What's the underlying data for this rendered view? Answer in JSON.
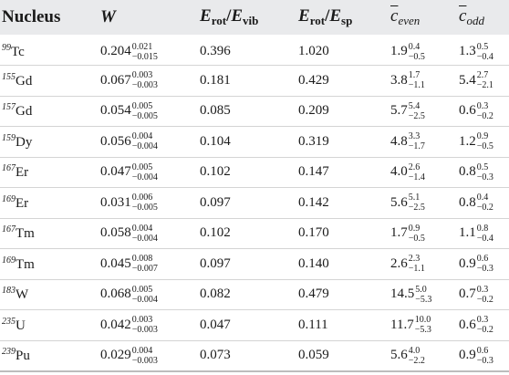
{
  "headers": {
    "nucleus": "Nucleus",
    "w": "W",
    "erot_evib": {
      "a": "E",
      "a_sub": "rot",
      "slash": "/",
      "b": "E",
      "b_sub": "vib"
    },
    "erot_esp": {
      "a": "E",
      "a_sub": "rot",
      "slash": "/",
      "b": "E",
      "b_sub": "sp"
    },
    "c_even": {
      "sym": "c",
      "sub": "even"
    },
    "c_odd": {
      "sym": "c",
      "sub": "odd"
    }
  },
  "rows": [
    {
      "iso": "99",
      "el": "Tc",
      "w": "0.204",
      "w_up": "0.021",
      "w_dn": "−0.015",
      "evib": "0.396",
      "esp": "1.020",
      "ce": "1.9",
      "ce_up": "0.4",
      "ce_dn": "−0.5",
      "co": "1.3",
      "co_up": "0.5",
      "co_dn": "−0.4"
    },
    {
      "iso": "155",
      "el": "Gd",
      "w": "0.067",
      "w_up": "0.003",
      "w_dn": "−0.003",
      "evib": "0.181",
      "esp": "0.429",
      "ce": "3.8",
      "ce_up": "1.7",
      "ce_dn": "−1.1",
      "co": "5.4",
      "co_up": "2.7",
      "co_dn": "−2.1"
    },
    {
      "iso": "157",
      "el": "Gd",
      "w": "0.054",
      "w_up": "0.005",
      "w_dn": "−0.005",
      "evib": "0.085",
      "esp": "0.209",
      "ce": "5.7",
      "ce_up": "5.4",
      "ce_dn": "−2.5",
      "co": "0.6",
      "co_up": "0.3",
      "co_dn": "−0.2"
    },
    {
      "iso": "159",
      "el": "Dy",
      "w": "0.056",
      "w_up": "0.004",
      "w_dn": "−0.004",
      "evib": "0.104",
      "esp": "0.319",
      "ce": "4.8",
      "ce_up": "3.3",
      "ce_dn": "−1.7",
      "co": "1.2",
      "co_up": "0.9",
      "co_dn": "−0.5"
    },
    {
      "iso": "167",
      "el": "Er",
      "w": "0.047",
      "w_up": "0.005",
      "w_dn": "−0.004",
      "evib": "0.102",
      "esp": "0.147",
      "ce": "4.0",
      "ce_up": "2.6",
      "ce_dn": "−1.4",
      "co": "0.8",
      "co_up": "0.5",
      "co_dn": "−0.3"
    },
    {
      "iso": "169",
      "el": "Er",
      "w": "0.031",
      "w_up": "0.006",
      "w_dn": "−0.005",
      "evib": "0.097",
      "esp": "0.142",
      "ce": "5.6",
      "ce_up": "5.1",
      "ce_dn": "−2.5",
      "co": "0.8",
      "co_up": "0.4",
      "co_dn": "−0.2"
    },
    {
      "iso": "167",
      "el": "Tm",
      "w": "0.058",
      "w_up": "0.004",
      "w_dn": "−0.004",
      "evib": "0.102",
      "esp": "0.170",
      "ce": "1.7",
      "ce_up": "0.9",
      "ce_dn": "−0.5",
      "co": "1.1",
      "co_up": "0.8",
      "co_dn": "−0.4"
    },
    {
      "iso": "169",
      "el": "Tm",
      "w": "0.045",
      "w_up": "0.008",
      "w_dn": "−0.007",
      "evib": "0.097",
      "esp": "0.140",
      "ce": "2.6",
      "ce_up": "2.3",
      "ce_dn": "−1.1",
      "co": "0.9",
      "co_up": "0.6",
      "co_dn": "−0.3"
    },
    {
      "iso": "183",
      "el": "W",
      "w": "0.068",
      "w_up": "0.005",
      "w_dn": "−0.004",
      "evib": "0.082",
      "esp": "0.479",
      "ce": "14.5",
      "ce_up": "5.0",
      "ce_dn": "−5.3",
      "co": "0.7",
      "co_up": "0.3",
      "co_dn": "−0.2"
    },
    {
      "iso": "235",
      "el": "U",
      "w": "0.042",
      "w_up": "0.003",
      "w_dn": "−0.003",
      "evib": "0.047",
      "esp": "0.111",
      "ce": "11.7",
      "ce_up": "10.0",
      "ce_dn": "−5.3",
      "co": "0.6",
      "co_up": "0.3",
      "co_dn": "−0.2"
    },
    {
      "iso": "239",
      "el": "Pu",
      "w": "0.029",
      "w_up": "0.004",
      "w_dn": "−0.003",
      "evib": "0.073",
      "esp": "0.059",
      "ce": "5.6",
      "ce_up": "4.0",
      "ce_dn": "−2.2",
      "co": "0.9",
      "co_up": "0.6",
      "co_dn": "−0.3"
    }
  ]
}
